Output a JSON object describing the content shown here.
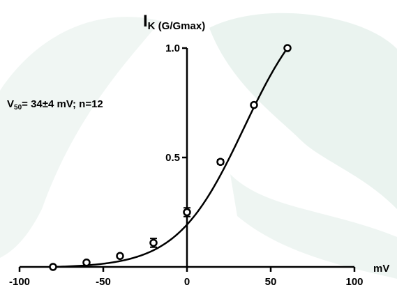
{
  "chart_data": {
    "type": "scatter",
    "title": "",
    "ylabel_main": "I",
    "ylabel_sub": "K (G/Gmax)",
    "xlabel": "mV",
    "annotation": {
      "prefix": "V",
      "subscript": "50",
      "text": "= 34±4 mV; n=12"
    },
    "xlim": [
      -100,
      100
    ],
    "ylim": [
      0,
      1.0
    ],
    "x_ticks": [
      -100,
      -50,
      0,
      50,
      100
    ],
    "y_ticks": [
      0.5,
      1.0
    ],
    "y_tick_labels": [
      "0.5",
      "1.0"
    ],
    "grid": false,
    "series": [
      {
        "x": [
          -80,
          -60,
          -40,
          -20,
          0,
          20,
          40,
          60
        ],
        "y": [
          0.0,
          0.02,
          0.05,
          0.11,
          0.25,
          0.48,
          0.74,
          1.0
        ],
        "err": [
          0.0,
          0.0,
          0.0,
          0.02,
          0.02,
          0.01,
          0.0,
          0.0
        ]
      }
    ],
    "fit": {
      "type": "boltzmann",
      "v50": 34,
      "slope": 20
    },
    "colors": {
      "data": "#000000",
      "background_shape": "#e8f1ee"
    }
  }
}
